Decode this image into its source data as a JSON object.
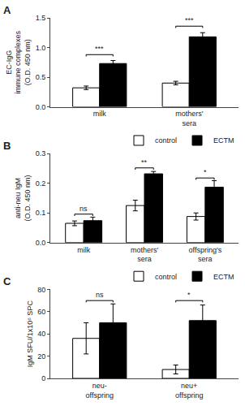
{
  "chart_data": [
    {
      "type": "bar",
      "title": "A",
      "ylabel": "EC-IgG\nimmune complexes\n(O.D. 450 nm)",
      "categories": [
        "milk",
        "mothers'\nsera"
      ],
      "series": [
        {
          "name": "control",
          "color": "white",
          "values": [
            0.32,
            0.4
          ],
          "errors": [
            0.03,
            0.03
          ]
        },
        {
          "name": "ECTM",
          "color": "black",
          "values": [
            0.73,
            1.18
          ],
          "errors": [
            0.05,
            0.07
          ]
        }
      ],
      "annotations": [
        {
          "text": "***",
          "category": "milk",
          "y": 0.88
        },
        {
          "text": "***",
          "category": "mothers'\nsera",
          "y": 1.36
        }
      ],
      "ylim": [
        0,
        1.5
      ],
      "yticks": [
        {
          "value": 0,
          "label": "0.0"
        },
        0.5,
        {
          "value": 1,
          "label": "1.0"
        },
        1.5
      ],
      "grid": false,
      "legend": false
    },
    {
      "type": "bar",
      "title": "B",
      "ylabel": "anti-neu IgM\n(O.D. 450 nm)",
      "categories": [
        "milk",
        "mothers'\nsera",
        "offspring's\nsera"
      ],
      "series": [
        {
          "name": "control",
          "color": "white",
          "values": [
            0.065,
            0.125,
            0.088
          ],
          "errors": [
            0.008,
            0.018,
            0.012
          ]
        },
        {
          "name": "ECTM",
          "color": "black",
          "values": [
            0.074,
            0.232,
            0.187
          ],
          "errors": [
            0.012,
            0.008,
            0.022
          ]
        }
      ],
      "annotations": [
        {
          "text": "ns",
          "category": "milk",
          "y": 0.096
        },
        {
          "text": "**",
          "category": "mothers'\nsera",
          "y": 0.252
        },
        {
          "text": "*",
          "category": "offspring's\nsera",
          "y": 0.218
        }
      ],
      "ylim": [
        0,
        0.3
      ],
      "yticks": [
        {
          "value": 0,
          "label": "0.0"
        },
        0.1,
        0.2,
        0.3
      ],
      "grid": false,
      "legend": "upper right"
    },
    {
      "type": "bar",
      "title": "C",
      "ylabel": "IgM SFU/1x10⁶ SPC",
      "categories": [
        "neu-\noffspring",
        "neu+\noffspring"
      ],
      "series": [
        {
          "name": "control",
          "color": "white",
          "values": [
            36,
            8
          ],
          "errors": [
            14,
            4
          ]
        },
        {
          "name": "ECTM",
          "color": "black",
          "values": [
            50,
            52
          ],
          "errors": [
            17,
            14
          ]
        }
      ],
      "annotations": [
        {
          "text": "ns",
          "category": "neu-\noffspring",
          "y": 70
        },
        {
          "text": "*",
          "category": "neu+\noffspring",
          "y": 70
        }
      ],
      "ylim": [
        0,
        80
      ],
      "yticks": [
        0,
        20,
        40,
        60,
        80
      ],
      "grid": false,
      "legend": "upper right"
    }
  ]
}
